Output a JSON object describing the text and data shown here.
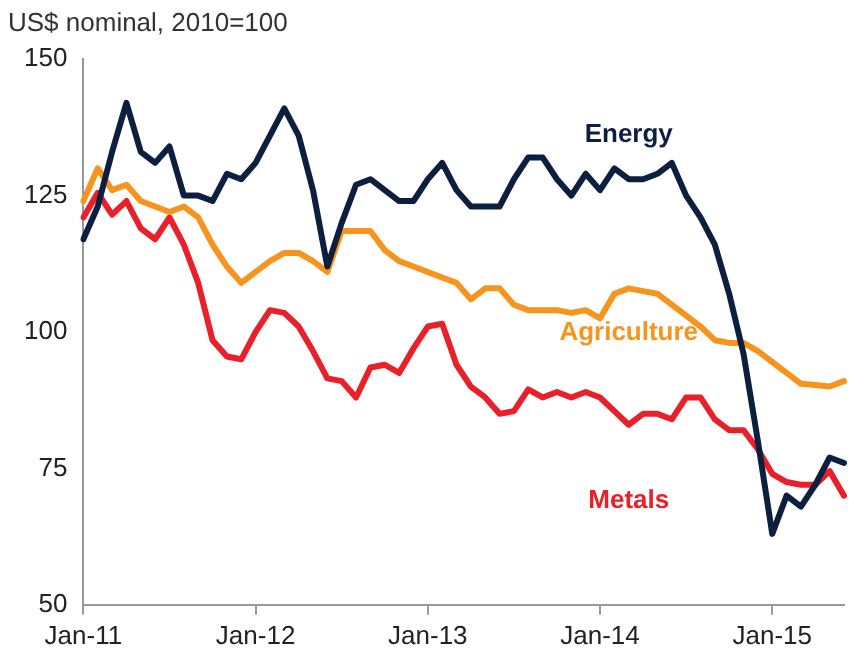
{
  "chart_data": {
    "type": "line",
    "title": "US$ nominal, 2010=100",
    "categories": [
      "Jan-11",
      null,
      null,
      null,
      null,
      null,
      null,
      null,
      null,
      null,
      null,
      null,
      "Jan-12",
      null,
      null,
      null,
      null,
      null,
      null,
      null,
      null,
      null,
      null,
      null,
      "Jan-13",
      null,
      null,
      null,
      null,
      null,
      null,
      null,
      null,
      null,
      null,
      null,
      "Jan-14",
      null,
      null,
      null,
      null,
      null,
      null,
      null,
      null,
      null,
      null,
      null,
      "Jan-15",
      null,
      null,
      null,
      null,
      null
    ],
    "series": [
      {
        "name": "Energy",
        "color": "#0d1f3f",
        "values": [
          117,
          123,
          133,
          142,
          133,
          131,
          134,
          125,
          125,
          124,
          129,
          128,
          131,
          136,
          141,
          136,
          126,
          112,
          120,
          127,
          128,
          126,
          124,
          124,
          128,
          131,
          126,
          123,
          123,
          123,
          128,
          132,
          132,
          128,
          125,
          129,
          126,
          130,
          128,
          128,
          129,
          131,
          125,
          121,
          116,
          107,
          96,
          80,
          63,
          70,
          68,
          72,
          77,
          76
        ]
      },
      {
        "name": "Agriculture",
        "color": "#f7941d",
        "values": [
          124,
          130,
          126,
          127,
          124,
          123,
          122,
          123,
          121,
          116,
          112,
          109,
          111,
          113,
          114.5,
          114.5,
          113,
          111,
          118.5,
          118.5,
          118.5,
          115,
          113,
          112,
          111,
          110,
          109,
          106,
          108,
          108,
          105,
          104,
          104,
          104,
          103.5,
          104,
          102.5,
          107,
          108,
          107.5,
          107,
          105,
          103,
          101,
          98.5,
          98,
          98,
          96.5,
          94.5,
          92.5,
          90.5,
          90.3,
          90,
          91
        ]
      },
      {
        "name": "Metals",
        "color": "#e8202a",
        "values": [
          121,
          125.5,
          121.5,
          124,
          119,
          117,
          121,
          116,
          109,
          98.5,
          95.5,
          95,
          100,
          104,
          103.5,
          101,
          96.5,
          91.5,
          91,
          88,
          93.5,
          94,
          92.5,
          97,
          101,
          101.5,
          94,
          90,
          88,
          85,
          85.5,
          89.5,
          88,
          89,
          88,
          89,
          88,
          85.5,
          83,
          85,
          85,
          84,
          88,
          88,
          84,
          82,
          82,
          78.5,
          74,
          72.5,
          72,
          72,
          74.5,
          70
        ]
      }
    ],
    "ylim": [
      50,
      150
    ],
    "yticks": [
      50,
      75,
      100,
      125,
      150
    ],
    "grid": false,
    "legend": false,
    "marker": "none",
    "line_style": "solid"
  }
}
